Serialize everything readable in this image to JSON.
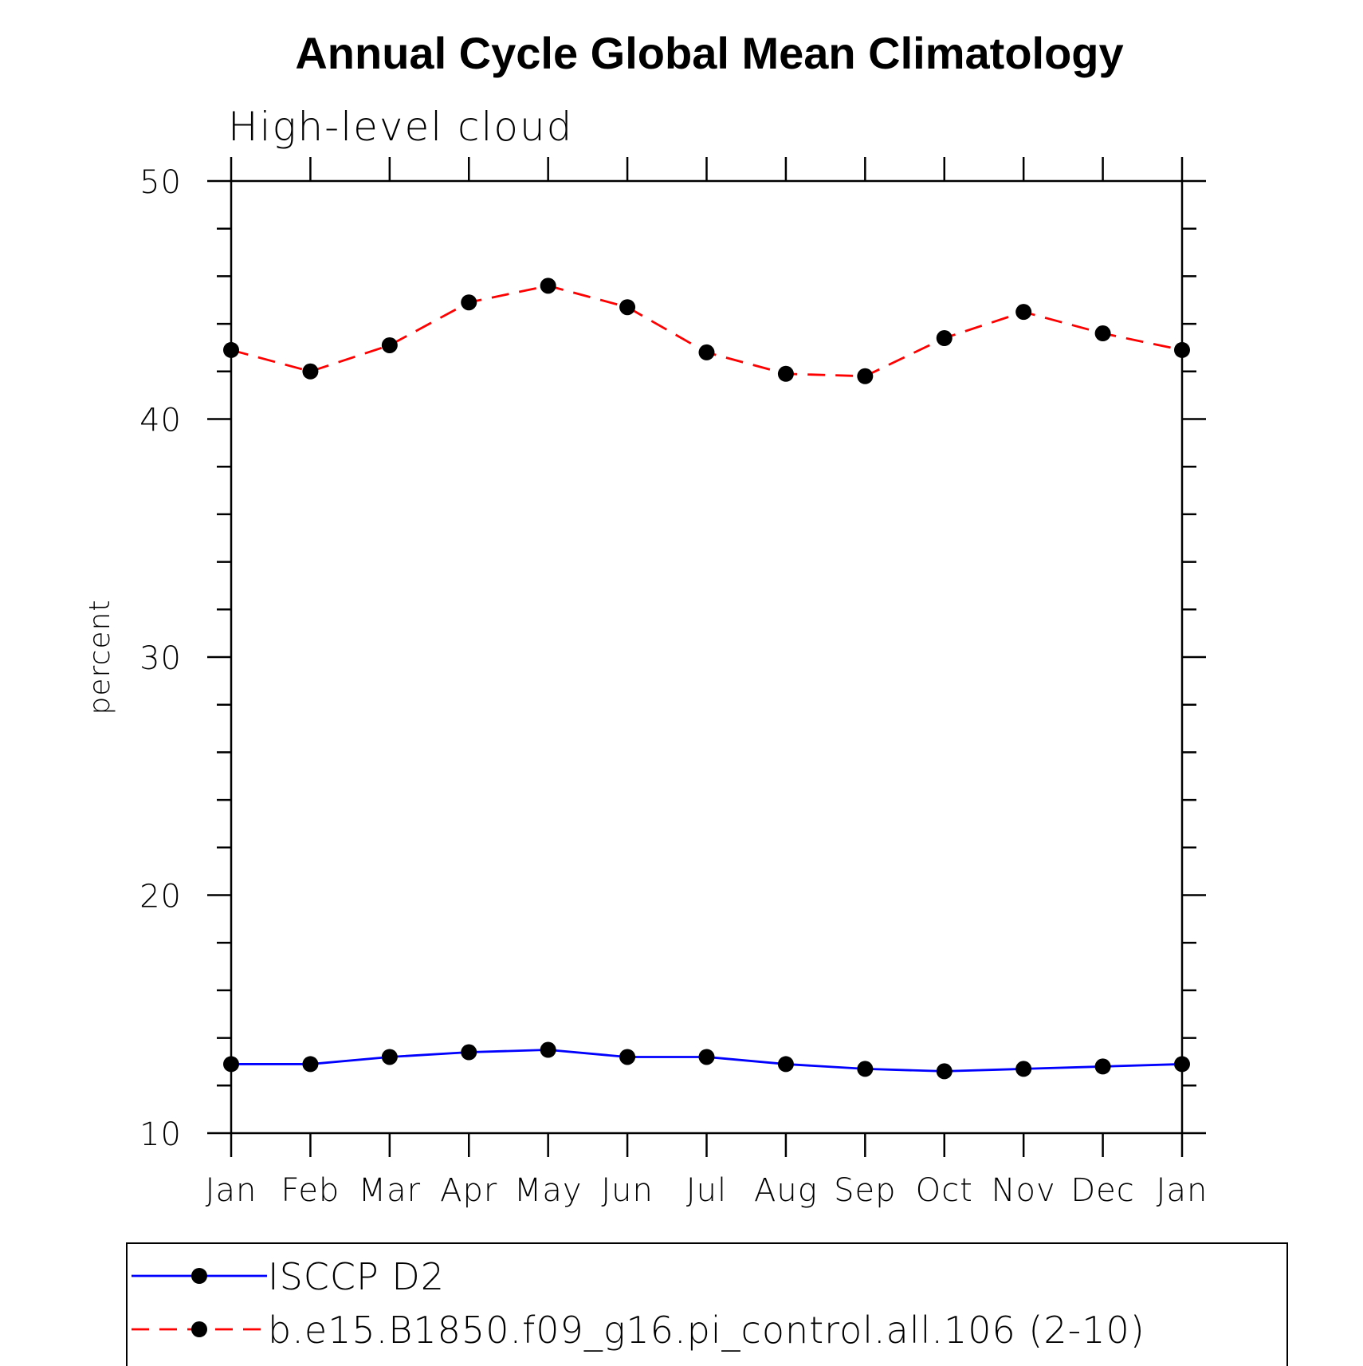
{
  "chart_data": {
    "type": "line",
    "title": "Annual Cycle Global Mean Climatology",
    "subtitle": "High-level cloud",
    "xlabel": "",
    "ylabel": "percent",
    "categories": [
      "Jan",
      "Feb",
      "Mar",
      "Apr",
      "May",
      "Jun",
      "Jul",
      "Aug",
      "Sep",
      "Oct",
      "Nov",
      "Dec",
      "Jan"
    ],
    "ylim": [
      10,
      50
    ],
    "yticks": [
      10,
      20,
      30,
      40,
      50
    ],
    "grid": false,
    "legend_position": "bottom",
    "series": [
      {
        "name": "ISCCP D2",
        "color": "#0000ff",
        "line_style": "solid",
        "marker": "filled-circle",
        "marker_color": "#000000",
        "values": [
          12.9,
          12.9,
          13.2,
          13.4,
          13.5,
          13.2,
          13.2,
          12.9,
          12.7,
          12.6,
          12.7,
          12.8,
          12.9
        ]
      },
      {
        "name": "b.e15.B1850.f09_g16.pi_control.all.106 (2-10)",
        "color": "#ff0000",
        "line_style": "dashed",
        "marker": "filled-circle",
        "marker_color": "#000000",
        "values": [
          42.9,
          42.0,
          43.1,
          44.9,
          45.6,
          44.7,
          42.8,
          41.9,
          41.8,
          43.4,
          44.5,
          43.6,
          42.9
        ]
      }
    ]
  }
}
